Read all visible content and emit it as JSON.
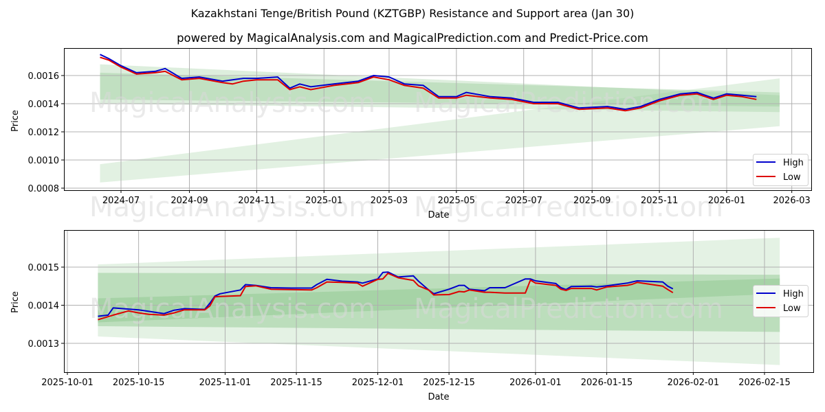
{
  "header": {
    "title": "Kazakhstani Tenge/British Pound (KZTGBP) Resistance and Support area (Jan 30)",
    "subtitle": "powered by MagicalAnalysis.com and MagicalPrediction.com and Predict-Price.com"
  },
  "watermarks": [
    "MagicalAnalysis.com",
    "MagicalPrediction.com"
  ],
  "colors": {
    "high": "#0000cc",
    "low": "#dd0000",
    "band_light": "#e3efe3",
    "band_mid": "#c9e3c9",
    "band_dark": "#a8d4a8",
    "grid": "#b0b0b0"
  },
  "legend": {
    "high": "High",
    "low": "Low"
  },
  "chart_data": [
    {
      "type": "line",
      "title": "Long-term view",
      "xlabel": "Date",
      "ylabel": "Price",
      "ylim": [
        0.00079,
        0.0018
      ],
      "x_ticks": [
        "2024-07",
        "2024-09",
        "2024-11",
        "2025-01",
        "2025-03",
        "2025-05",
        "2025-07",
        "2025-09",
        "2025-11",
        "2026-01",
        "2026-03"
      ],
      "y_ticks": [
        "0.0008",
        "0.0010",
        "0.0012",
        "0.0014",
        "0.0016"
      ],
      "grid": true,
      "legend_position": "lower right",
      "x": [
        "2024-06-12",
        "2024-06-20",
        "2024-07-01",
        "2024-07-15",
        "2024-08-01",
        "2024-08-10",
        "2024-08-25",
        "2024-09-10",
        "2024-10-01",
        "2024-10-10",
        "2024-10-20",
        "2024-11-01",
        "2024-11-20",
        "2024-12-01",
        "2024-12-10",
        "2024-12-20",
        "2025-01-10",
        "2025-02-01",
        "2025-02-15",
        "2025-03-01",
        "2025-03-15",
        "2025-04-01",
        "2025-04-15",
        "2025-05-01",
        "2025-05-10",
        "2025-06-01",
        "2025-06-20",
        "2025-07-10",
        "2025-08-01",
        "2025-08-20",
        "2025-09-15",
        "2025-10-01",
        "2025-10-15",
        "2025-11-01",
        "2025-11-20",
        "2025-12-05",
        "2025-12-20",
        "2026-01-01",
        "2026-01-15",
        "2026-01-28"
      ],
      "series": [
        {
          "name": "High",
          "values": [
            0.00175,
            0.00172,
            0.00167,
            0.00162,
            0.00163,
            0.00165,
            0.00158,
            0.00159,
            0.00156,
            0.00157,
            0.00158,
            0.00158,
            0.00159,
            0.00151,
            0.00154,
            0.00152,
            0.00154,
            0.00156,
            0.0016,
            0.00159,
            0.00154,
            0.00153,
            0.00145,
            0.00145,
            0.00148,
            0.00145,
            0.00144,
            0.00141,
            0.00141,
            0.00137,
            0.00138,
            0.00136,
            0.00138,
            0.00143,
            0.00147,
            0.00148,
            0.00144,
            0.00147,
            0.00146,
            0.00145
          ]
        },
        {
          "name": "Low",
          "values": [
            0.00173,
            0.00171,
            0.00166,
            0.00161,
            0.00162,
            0.00163,
            0.00157,
            0.00158,
            0.00155,
            0.00154,
            0.00156,
            0.00157,
            0.00157,
            0.0015,
            0.00152,
            0.0015,
            0.00153,
            0.00155,
            0.00159,
            0.00157,
            0.00153,
            0.00151,
            0.00144,
            0.00144,
            0.00146,
            0.00144,
            0.00143,
            0.0014,
            0.0014,
            0.00136,
            0.00137,
            0.00135,
            0.00137,
            0.00142,
            0.00146,
            0.00147,
            0.00143,
            0.00146,
            0.00145,
            0.00143
          ]
        }
      ],
      "bands": [
        {
          "name": "resistance-outer",
          "start": [
            0.0014,
            0.00168
          ],
          "end": [
            0.00134,
            0.00146
          ]
        },
        {
          "name": "resistance-inner",
          "start": [
            0.00143,
            0.00162
          ],
          "end": [
            0.00138,
            0.00148
          ]
        },
        {
          "name": "support-lower",
          "start": [
            0.00084,
            0.00097
          ],
          "end": [
            0.00124,
            0.00158
          ]
        }
      ]
    },
    {
      "type": "line",
      "title": "Zoomed view",
      "xlabel": "Date",
      "ylabel": "Price",
      "ylim": [
        0.001225,
        0.001598
      ],
      "x_ticks": [
        "2025-10-01",
        "2025-10-15",
        "2025-11-01",
        "2025-11-15",
        "2025-12-01",
        "2025-12-15",
        "2026-01-01",
        "2026-01-15",
        "2026-02-01",
        "2026-02-15"
      ],
      "y_ticks": [
        "0.0013",
        "0.0014",
        "0.0015"
      ],
      "grid": true,
      "legend_position": "center right",
      "x": [
        "2025-10-07",
        "2025-10-09",
        "2025-10-10",
        "2025-10-13",
        "2025-10-15",
        "2025-10-17",
        "2025-10-20",
        "2025-10-22",
        "2025-10-24",
        "2025-10-28",
        "2025-10-29",
        "2025-10-30",
        "2025-10-31",
        "2025-11-04",
        "2025-11-05",
        "2025-11-07",
        "2025-11-10",
        "2025-11-14",
        "2025-11-18",
        "2025-11-19",
        "2025-11-21",
        "2025-11-24",
        "2025-11-27",
        "2025-11-28",
        "2025-12-01",
        "2025-12-02",
        "2025-12-03",
        "2025-12-05",
        "2025-12-08",
        "2025-12-09",
        "2025-12-11",
        "2025-12-12",
        "2025-12-15",
        "2025-12-17",
        "2025-12-18",
        "2025-12-19",
        "2025-12-22",
        "2025-12-23",
        "2025-12-26",
        "2025-12-30",
        "2025-12-31",
        "2026-01-01",
        "2026-01-05",
        "2026-01-06",
        "2026-01-07",
        "2026-01-08",
        "2026-01-12",
        "2026-01-13",
        "2026-01-15",
        "2026-01-19",
        "2026-01-20",
        "2026-01-21",
        "2026-01-26",
        "2026-01-27",
        "2026-01-28"
      ],
      "series": [
        {
          "name": "High",
          "values": [
            0.001371,
            0.001374,
            0.001393,
            0.00139,
            0.001388,
            0.001384,
            0.001378,
            0.001387,
            0.001391,
            0.001389,
            0.001405,
            0.001424,
            0.00143,
            0.00144,
            0.001454,
            0.001452,
            0.001446,
            0.001445,
            0.001445,
            0.001454,
            0.001468,
            0.001463,
            0.001461,
            0.001458,
            0.001469,
            0.001486,
            0.001487,
            0.001474,
            0.001477,
            0.001463,
            0.00144,
            0.00143,
            0.001442,
            0.001452,
            0.001452,
            0.001442,
            0.001438,
            0.001446,
            0.001446,
            0.001469,
            0.001469,
            0.001464,
            0.001457,
            0.001446,
            0.001441,
            0.001449,
            0.00145,
            0.001448,
            0.001451,
            0.001458,
            0.001461,
            0.001464,
            0.001461,
            0.00145,
            0.001443
          ]
        },
        {
          "name": "Low",
          "values": [
            0.001362,
            0.00137,
            0.001374,
            0.001385,
            0.00138,
            0.001376,
            0.001374,
            0.00138,
            0.001388,
            0.001388,
            0.001398,
            0.001422,
            0.001423,
            0.001425,
            0.001449,
            0.001451,
            0.001442,
            0.001441,
            0.00144,
            0.001446,
            0.001461,
            0.00146,
            0.001458,
            0.00145,
            0.001468,
            0.001469,
            0.001484,
            0.001472,
            0.001465,
            0.001451,
            0.00144,
            0.001427,
            0.001428,
            0.001436,
            0.001435,
            0.00144,
            0.001434,
            0.001434,
            0.001432,
            0.001432,
            0.001466,
            0.001458,
            0.001452,
            0.001442,
            0.001439,
            0.001444,
            0.001444,
            0.00144,
            0.001448,
            0.001452,
            0.001455,
            0.00146,
            0.00145,
            0.001441,
            0.001433
          ]
        }
      ],
      "bands": [
        {
          "name": "outer-light",
          "start": [
            0.001318,
            0.001507
          ],
          "end": [
            0.001243,
            0.001577
          ]
        },
        {
          "name": "mid",
          "start": [
            0.001345,
            0.001485
          ],
          "end": [
            0.00133,
            0.00148
          ]
        },
        {
          "name": "inner-dark",
          "start": [
            0.001355,
            0.001418
          ],
          "end": [
            0.00143,
            0.00147
          ]
        }
      ]
    }
  ]
}
